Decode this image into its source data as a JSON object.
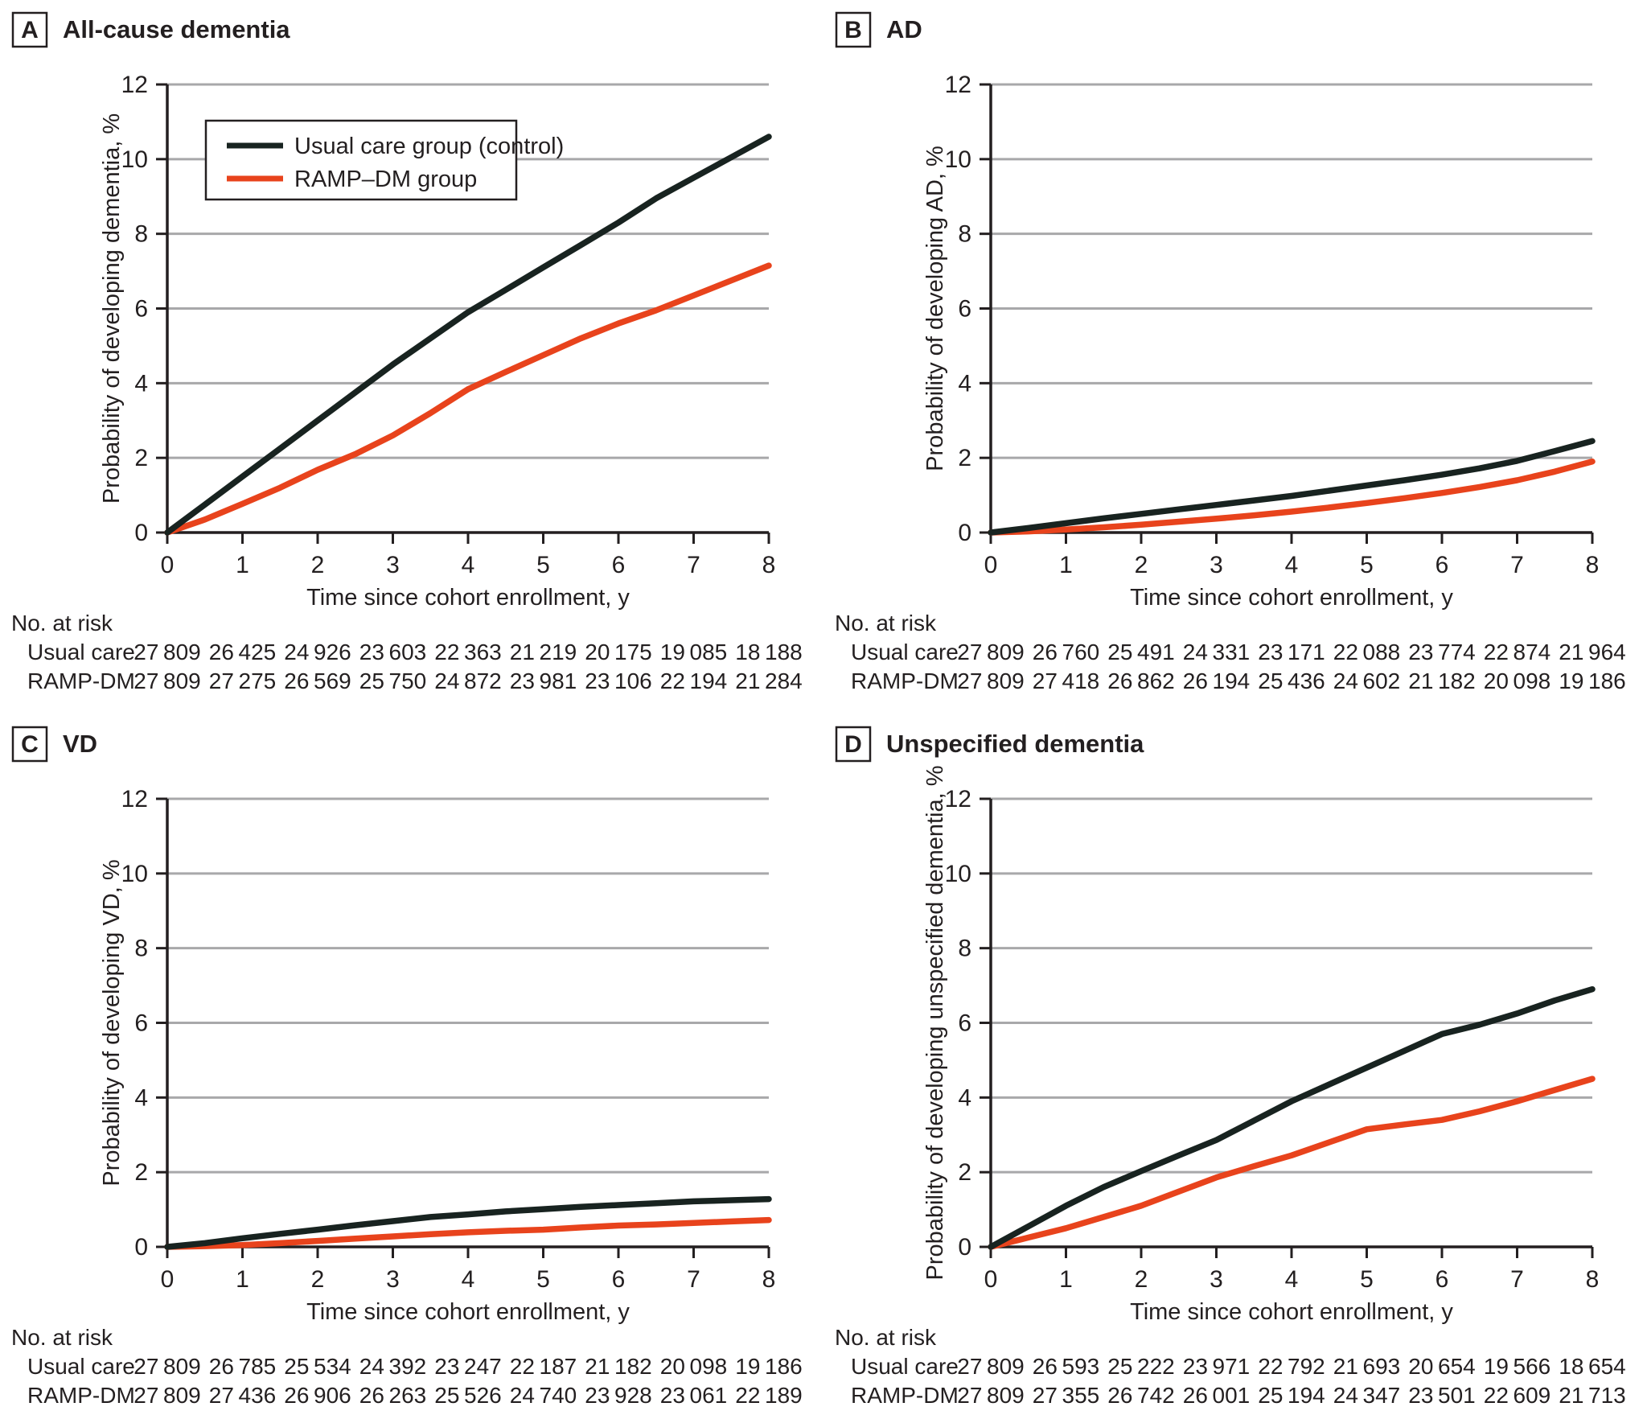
{
  "figure": {
    "background": "#ffffff"
  },
  "colors": {
    "control": "#182320",
    "ramp": "#e8431c",
    "grid": "#a8a8aa",
    "axis": "#231f20",
    "text": "#231f20"
  },
  "legend": {
    "items": [
      {
        "label": "Usual care group (control)",
        "series": "control"
      },
      {
        "label": "RAMP–DM group",
        "series": "ramp"
      }
    ]
  },
  "axes": {
    "x_title": "Time since cohort enrollment, y",
    "x_ticks": [
      0,
      1,
      2,
      3,
      4,
      5,
      6,
      7,
      8
    ],
    "y_ticks": [
      0,
      2,
      4,
      6,
      8,
      10,
      12
    ],
    "xlim": [
      0,
      8
    ],
    "ylim": [
      0,
      12
    ],
    "grid": "horizontal"
  },
  "risk": {
    "header": "No. at risk",
    "row_labels": [
      "Usual care",
      "RAMP-DM"
    ]
  },
  "chart_data": [
    {
      "type": "line",
      "letter": "A",
      "title": "All-cause dementia",
      "xlabel": "Time since cohort enrollment, y",
      "ylabel": "Probability of developing dementia, %",
      "xlim": [
        0,
        8
      ],
      "ylim": [
        0,
        12
      ],
      "legend": true,
      "legend_position": "upper-left-inside",
      "x": [
        0,
        0.5,
        1,
        1.5,
        2,
        2.5,
        3,
        3.5,
        4,
        4.5,
        5,
        5.5,
        6,
        6.5,
        7,
        7.5,
        8
      ],
      "series": [
        {
          "name": "Usual care group (control)",
          "color": "#182320",
          "values": [
            0,
            0.75,
            1.5,
            2.25,
            3.0,
            3.75,
            4.5,
            5.2,
            5.9,
            6.5,
            7.1,
            7.7,
            8.3,
            8.95,
            9.5,
            10.05,
            10.6
          ]
        },
        {
          "name": "RAMP–DM group",
          "color": "#e8431c",
          "values": [
            0,
            0.35,
            0.77,
            1.2,
            1.68,
            2.1,
            2.6,
            3.2,
            3.84,
            4.3,
            4.75,
            5.2,
            5.6,
            5.95,
            6.35,
            6.75,
            7.15
          ]
        }
      ],
      "at_risk": [
        {
          "label": "Usual care",
          "counts": [
            "27 809",
            "26 425",
            "24 926",
            "23 603",
            "22 363",
            "21 219",
            "20 175",
            "19 085",
            "18 188"
          ]
        },
        {
          "label": "RAMP-DM",
          "counts": [
            "27 809",
            "27 275",
            "26 569",
            "25 750",
            "24 872",
            "23 981",
            "23 106",
            "22 194",
            "21 284"
          ]
        }
      ]
    },
    {
      "type": "line",
      "letter": "B",
      "title": "AD",
      "xlabel": "Time since cohort enrollment, y",
      "ylabel": "Probability of developing AD, %",
      "xlim": [
        0,
        8
      ],
      "ylim": [
        0,
        12
      ],
      "legend": false,
      "x": [
        0,
        0.5,
        1,
        1.5,
        2,
        2.5,
        3,
        3.5,
        4,
        4.5,
        5,
        5.5,
        6,
        6.5,
        7,
        7.5,
        8
      ],
      "series": [
        {
          "name": "Usual care group (control)",
          "color": "#182320",
          "values": [
            0,
            0.12,
            0.25,
            0.38,
            0.5,
            0.62,
            0.74,
            0.86,
            0.98,
            1.12,
            1.26,
            1.4,
            1.55,
            1.72,
            1.92,
            2.18,
            2.45
          ]
        },
        {
          "name": "RAMP–DM group",
          "color": "#e8431c",
          "values": [
            0,
            0.03,
            0.08,
            0.14,
            0.21,
            0.29,
            0.37,
            0.46,
            0.56,
            0.67,
            0.79,
            0.92,
            1.06,
            1.22,
            1.4,
            1.63,
            1.9
          ]
        }
      ],
      "at_risk": [
        {
          "label": "Usual care",
          "counts": [
            "27 809",
            "26 760",
            "25 491",
            "24 331",
            "23 171",
            "22 088",
            "23 774",
            "22 874",
            "21 964"
          ]
        },
        {
          "label": "RAMP-DM",
          "counts": [
            "27 809",
            "27 418",
            "26 862",
            "26 194",
            "25 436",
            "24 602",
            "21 182",
            "20 098",
            "19 186"
          ]
        }
      ]
    },
    {
      "type": "line",
      "letter": "C",
      "title": "VD",
      "xlabel": "Time since cohort enrollment, y",
      "ylabel": "Probability of developing VD, %",
      "xlim": [
        0,
        8
      ],
      "ylim": [
        0,
        12
      ],
      "legend": false,
      "x": [
        0,
        0.5,
        1,
        1.5,
        2,
        2.5,
        3,
        3.5,
        4,
        4.5,
        5,
        5.5,
        6,
        6.5,
        7,
        7.5,
        8
      ],
      "series": [
        {
          "name": "Usual care group (control)",
          "color": "#182320",
          "values": [
            0,
            0.1,
            0.23,
            0.35,
            0.46,
            0.58,
            0.69,
            0.8,
            0.87,
            0.95,
            1.01,
            1.07,
            1.12,
            1.17,
            1.22,
            1.25,
            1.28
          ]
        },
        {
          "name": "RAMP–DM group",
          "color": "#e8431c",
          "values": [
            0,
            0.02,
            0.05,
            0.1,
            0.16,
            0.22,
            0.28,
            0.34,
            0.39,
            0.43,
            0.46,
            0.52,
            0.57,
            0.6,
            0.64,
            0.68,
            0.72
          ]
        }
      ],
      "at_risk": [
        {
          "label": "Usual care",
          "counts": [
            "27 809",
            "26 785",
            "25 534",
            "24 392",
            "23 247",
            "22 187",
            "21 182",
            "20 098",
            "19 186"
          ]
        },
        {
          "label": "RAMP-DM",
          "counts": [
            "27 809",
            "27 436",
            "26 906",
            "26 263",
            "25 526",
            "24 740",
            "23 928",
            "23 061",
            "22 189"
          ]
        }
      ]
    },
    {
      "type": "line",
      "letter": "D",
      "title": "Unspecified dementia",
      "xlabel": "Time since cohort enrollment, y",
      "ylabel": "Probability of developing unspecified dementia, %",
      "xlim": [
        0,
        8
      ],
      "ylim": [
        0,
        12
      ],
      "legend": false,
      "x": [
        0,
        0.5,
        1,
        1.5,
        2,
        2.5,
        3,
        3.5,
        4,
        4.5,
        5,
        5.5,
        6,
        6.5,
        7,
        7.5,
        8
      ],
      "series": [
        {
          "name": "Usual care group (control)",
          "color": "#182320",
          "values": [
            0,
            0.55,
            1.1,
            1.6,
            2.03,
            2.45,
            2.86,
            3.38,
            3.9,
            4.35,
            4.8,
            5.25,
            5.7,
            5.95,
            6.25,
            6.6,
            6.9
          ]
        },
        {
          "name": "RAMP–DM group",
          "color": "#e8431c",
          "values": [
            0,
            0.25,
            0.5,
            0.8,
            1.1,
            1.48,
            1.86,
            2.16,
            2.45,
            2.8,
            3.15,
            3.28,
            3.4,
            3.63,
            3.9,
            4.2,
            4.5
          ]
        }
      ],
      "at_risk": [
        {
          "label": "Usual care",
          "counts": [
            "27 809",
            "26 593",
            "25 222",
            "23 971",
            "22 792",
            "21 693",
            "20 654",
            "19 566",
            "18 654"
          ]
        },
        {
          "label": "RAMP-DM",
          "counts": [
            "27 809",
            "27 355",
            "26 742",
            "26 001",
            "25 194",
            "24 347",
            "23 501",
            "22 609",
            "21 713"
          ]
        }
      ]
    }
  ]
}
